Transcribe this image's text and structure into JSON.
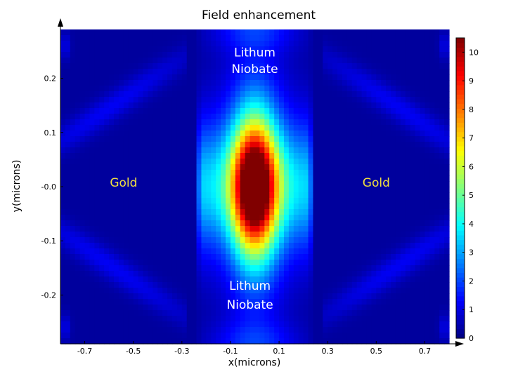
{
  "chart_data": {
    "type": "heatmap",
    "title": "Field enhancement",
    "xlabel": "x(microns)",
    "ylabel": "y(microns)",
    "xlim": [
      -0.8,
      0.8
    ],
    "ylim": [
      -0.29,
      0.29
    ],
    "x_ticks": [
      -0.7,
      -0.5,
      -0.3,
      -0.1,
      0.1,
      0.3,
      0.5,
      0.7
    ],
    "x_tick_labels": [
      "-0.7",
      "-0.5",
      "-0.3",
      "-0.1",
      "0.1",
      "0.3",
      "0.5",
      "0.7"
    ],
    "y_ticks": [
      0.2,
      0.1,
      0.0,
      -0.1,
      -0.2
    ],
    "y_tick_labels": [
      "0.2",
      "0.1",
      "-0.0",
      "-0.1",
      "-0.2"
    ],
    "colorbar": {
      "min": 0,
      "max": 10.5,
      "ticks": [
        0,
        1,
        2,
        3,
        4,
        5,
        6,
        7,
        8,
        9,
        10
      ],
      "tick_labels": [
        "0",
        "1",
        "2",
        "3",
        "4",
        "5",
        "6",
        "7",
        "8",
        "9",
        "10"
      ],
      "colormap": "jet"
    },
    "field": {
      "peak_value": 10.2,
      "peak_x": 0.0,
      "peak_y": 0.0,
      "gap_half_width": 0.25,
      "background_value": 0.3
    },
    "annotations": [
      {
        "text": "Lithum",
        "x": 0.0,
        "y": 0.24,
        "color": "#ffffff"
      },
      {
        "text": "Niobate",
        "x": 0.0,
        "y": 0.21,
        "color": "#ffffff"
      },
      {
        "text": "Gold",
        "x": -0.54,
        "y": 0.0,
        "color": "#f2e040"
      },
      {
        "text": "Gold",
        "x": 0.5,
        "y": 0.0,
        "color": "#f2e040"
      },
      {
        "text": "Lithum",
        "x": -0.02,
        "y": -0.19,
        "color": "#ffffff"
      },
      {
        "text": "Niobate",
        "x": -0.02,
        "y": -0.225,
        "color": "#ffffff"
      }
    ]
  }
}
